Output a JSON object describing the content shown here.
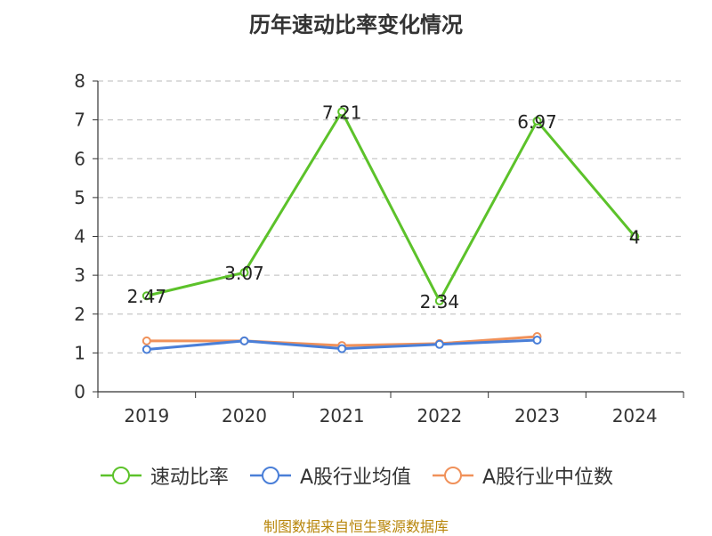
{
  "chart_data": {
    "type": "line",
    "title": "历年速动比率变化情况",
    "categories": [
      "2019",
      "2020",
      "2021",
      "2022",
      "2023",
      "2024"
    ],
    "ylim": [
      0,
      8
    ],
    "yticks": [
      0,
      1,
      2,
      3,
      4,
      5,
      6,
      7,
      8
    ],
    "grid": true,
    "legend_position": "bottom",
    "series": [
      {
        "name": "速动比率",
        "color": "#5cc22a",
        "values": [
          2.47,
          3.07,
          7.21,
          2.34,
          6.97,
          4
        ],
        "labels": [
          "2.47",
          "3.07",
          "7.21",
          "2.34",
          "6.97",
          "4"
        ]
      },
      {
        "name": "A股行业均值",
        "color": "#4a7fd8",
        "values": [
          1.09,
          1.31,
          1.11,
          1.22,
          1.33,
          null
        ]
      },
      {
        "name": "A股行业中位数",
        "color": "#f0915a",
        "values": [
          1.31,
          1.31,
          1.19,
          1.24,
          1.42,
          null
        ]
      }
    ]
  },
  "source": "制图数据来自恒生聚源数据库"
}
